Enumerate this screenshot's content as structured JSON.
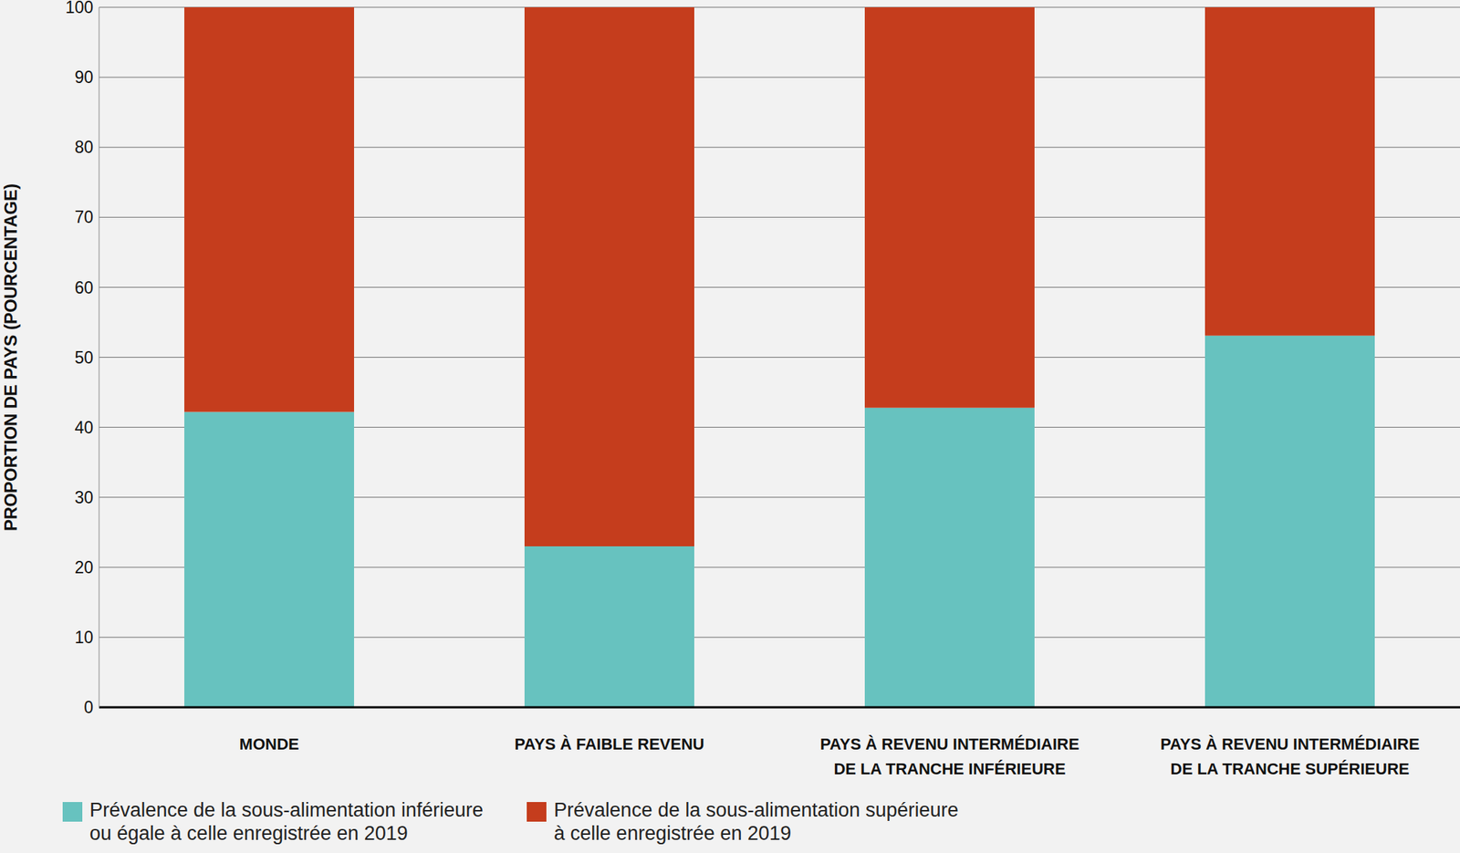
{
  "chart_data": {
    "type": "bar",
    "stacked": true,
    "y_label": "PROPORTION DE PAYS (POURCENTAGE)",
    "categories": [
      "MONDE",
      "PAYS À FAIBLE REVENU",
      "PAYS À REVENU INTERMÉDIAIRE\nDE LA TRANCHE INFÉRIEURE",
      "PAYS À REVENU INTERMÉDIAIRE\nDE LA TRANCHE SUPÉRIEURE"
    ],
    "series": [
      {
        "name": "Prévalence de la sous-alimentation inférieure\nou égale à celle enregistrée en 2019",
        "color": "#67c2bf",
        "values": [
          42.2,
          23,
          42.8,
          53.1
        ]
      },
      {
        "name": "Prévalence de la sous-alimentation supérieure\nà celle enregistrée en 2019",
        "color": "#c53d1d",
        "values": [
          57.8,
          77,
          57.2,
          46.9
        ]
      }
    ],
    "ylim": [
      0,
      100
    ],
    "yticks": [
      0,
      10,
      20,
      30,
      40,
      50,
      60,
      70,
      80,
      90,
      100
    ],
    "grid": true,
    "legend": "bottom-left"
  }
}
